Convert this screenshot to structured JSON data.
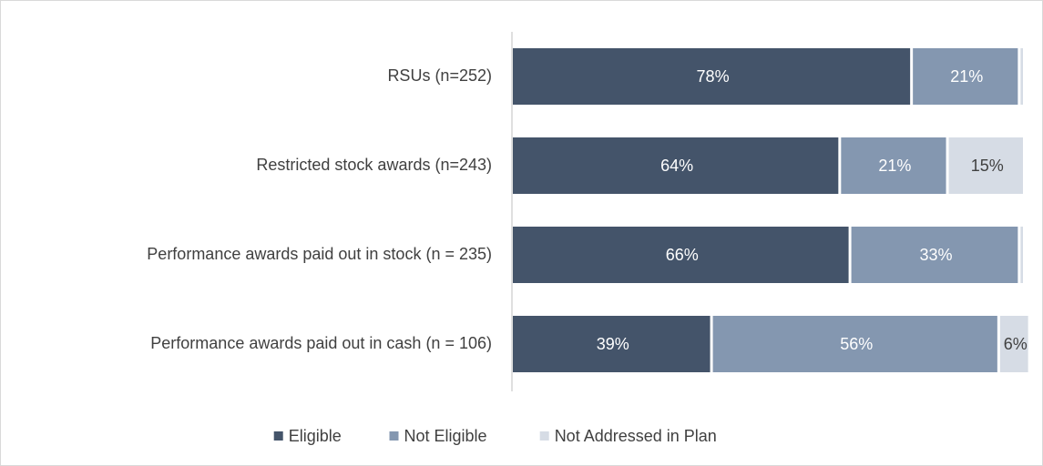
{
  "chart_data": {
    "type": "stacked_barh",
    "categories": [
      "RSUs (n=252)",
      "Restricted stock awards (n=243)",
      "Performance awards paid out in stock (n = 235)",
      "Performance awards paid out in cash (n = 106)"
    ],
    "series": [
      {
        "name": "Eligible",
        "color": "#44546a",
        "label_color": "#ffffff",
        "values": [
          78,
          64,
          66,
          39
        ],
        "value_labels": [
          "78%",
          "64%",
          "66%",
          "39%"
        ]
      },
      {
        "name": "Not Eligible",
        "color": "#8497b0",
        "label_color": "#ffffff",
        "values": [
          21,
          21,
          33,
          56
        ],
        "value_labels": [
          "21%",
          "21%",
          "33%",
          "56%"
        ]
      },
      {
        "name": "Not Addressed in Plan",
        "color": "#d6dce5",
        "label_color": "#404040",
        "values": [
          1,
          15,
          1,
          6
        ],
        "value_labels": [
          null,
          "15%",
          null,
          "6%"
        ]
      }
    ],
    "xlim": [
      0,
      100
    ],
    "legend": "bottom"
  }
}
